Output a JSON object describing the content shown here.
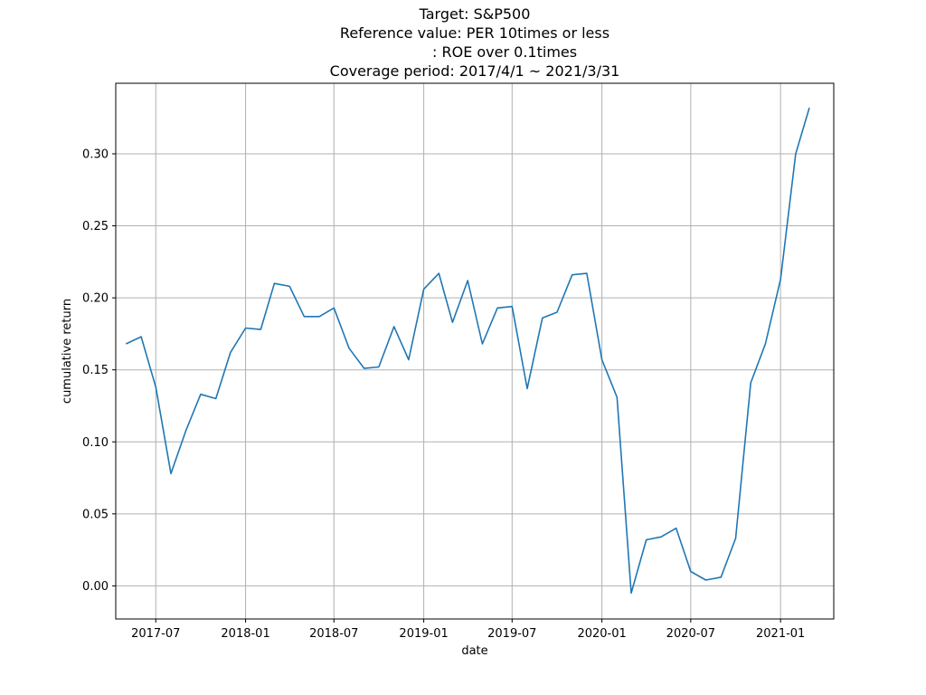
{
  "chart_data": {
    "type": "line",
    "title_lines": [
      "Target: S&P500",
      "Reference value: PER 10times or less",
      "             : ROE over 0.1times",
      "Coverage period: 2017/4/1 ~ 2021/3/31"
    ],
    "xlabel": "date",
    "ylabel": "cumulative return",
    "grid": true,
    "x_ticks": [
      "2017-07",
      "2018-01",
      "2018-07",
      "2019-01",
      "2019-07",
      "2020-01",
      "2020-07",
      "2021-01"
    ],
    "y_ticks": [
      "0.00",
      "0.05",
      "0.10",
      "0.15",
      "0.20",
      "0.25",
      "0.30"
    ],
    "xlim": [
      "2017-04-10",
      "2021-04-20"
    ],
    "ylim": [
      -0.023,
      0.349
    ],
    "series": [
      {
        "color": "#1f77b4",
        "x": [
          "2017-05-01",
          "2017-06-01",
          "2017-07-01",
          "2017-08-01",
          "2017-09-01",
          "2017-10-01",
          "2017-11-01",
          "2017-12-01",
          "2018-01-01",
          "2018-02-01",
          "2018-03-01",
          "2018-04-01",
          "2018-05-01",
          "2018-06-01",
          "2018-07-01",
          "2018-08-01",
          "2018-09-01",
          "2018-10-01",
          "2018-11-01",
          "2018-12-01",
          "2019-01-01",
          "2019-02-01",
          "2019-03-01",
          "2019-04-01",
          "2019-05-01",
          "2019-06-01",
          "2019-07-01",
          "2019-08-01",
          "2019-09-01",
          "2019-10-01",
          "2019-11-01",
          "2019-12-01",
          "2020-01-01",
          "2020-02-01",
          "2020-03-01",
          "2020-04-01",
          "2020-05-01",
          "2020-06-01",
          "2020-07-01",
          "2020-08-01",
          "2020-09-01",
          "2020-10-01",
          "2020-11-01",
          "2020-12-01",
          "2021-01-01",
          "2021-02-01",
          "2021-03-01"
        ],
        "y": [
          0.168,
          0.173,
          0.138,
          0.078,
          0.108,
          0.133,
          0.13,
          0.162,
          0.179,
          0.178,
          0.21,
          0.208,
          0.187,
          0.187,
          0.193,
          0.165,
          0.151,
          0.152,
          0.18,
          0.157,
          0.206,
          0.217,
          0.183,
          0.212,
          0.168,
          0.193,
          0.194,
          0.137,
          0.186,
          0.19,
          0.216,
          0.217,
          0.157,
          0.131,
          -0.005,
          0.032,
          0.034,
          0.04,
          0.01,
          0.004,
          0.006,
          0.033,
          0.141,
          0.168,
          0.213,
          0.3,
          0.332
        ]
      }
    ]
  }
}
